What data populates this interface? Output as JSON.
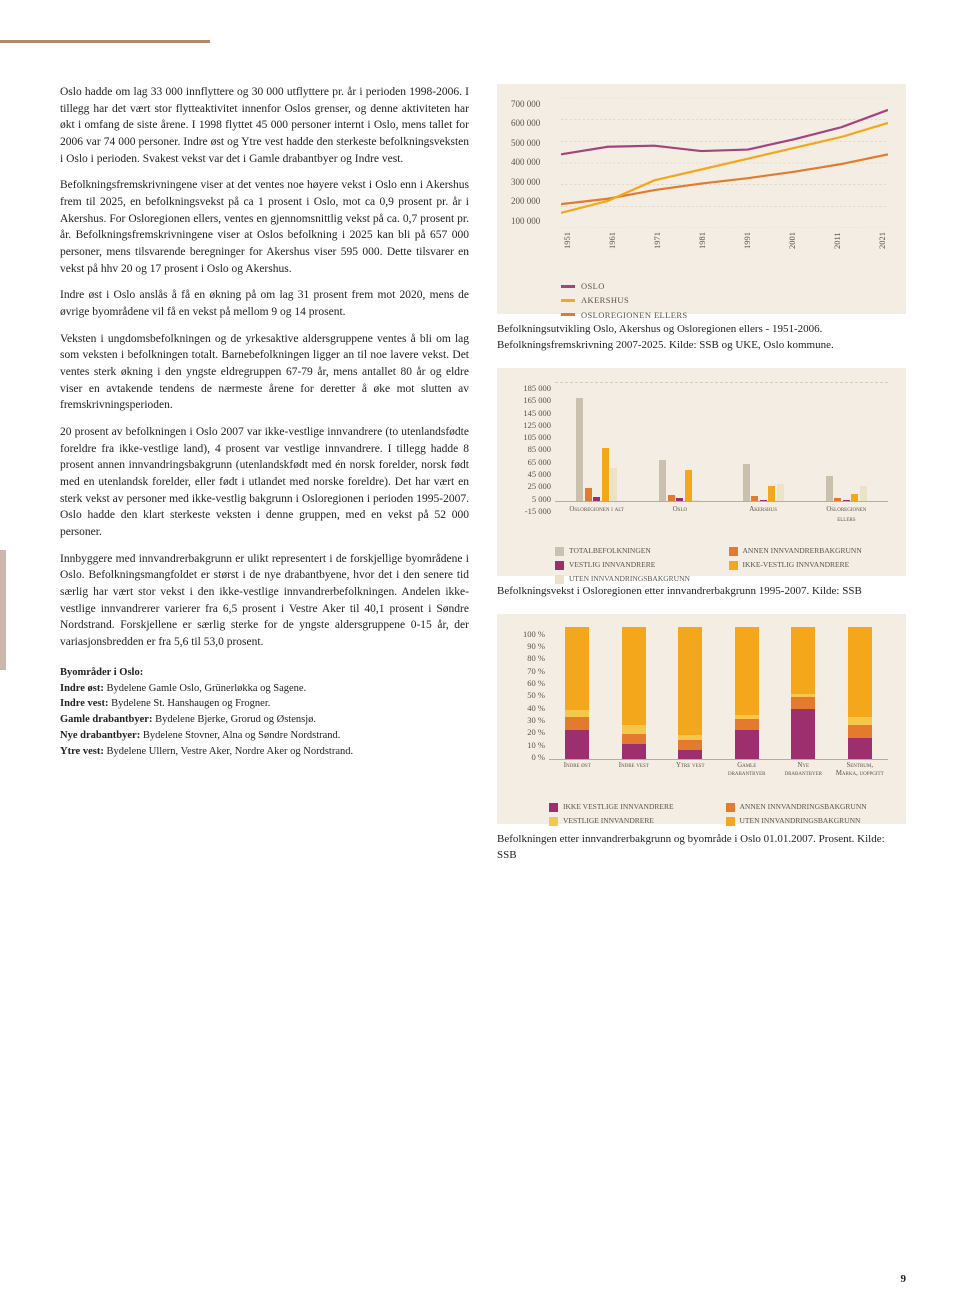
{
  "page_number": "9",
  "colors": {
    "oslo": "#a6437c",
    "akershus": "#f5a71b",
    "osloreg": "#e47a2e",
    "box_bg": "#f3ede3",
    "gridline": "#d6cdb8",
    "c_total": "#c9c1ad",
    "c_annen": "#e47a2e",
    "c_vestlig": "#9e2f6e",
    "c_ikkevestlig": "#f5a71b",
    "c_uten": "#ebe2c7"
  },
  "para": {
    "p1": "Oslo hadde om lag 33 000 innflyttere og 30 000 utflyttere pr. år i perioden 1998-2006. I tillegg har det vært stor flytteaktivitet innenfor Oslos grenser, og denne aktiviteten har økt i omfang de siste årene. I 1998 flyttet 45 000 personer internt i Oslo, mens tallet for 2006 var 74 000 personer. Indre øst og Ytre vest hadde den sterkeste befolkningsveksten i Oslo i perioden. Svakest vekst var det i Gamle drabantbyer og Indre vest.",
    "p2": "Befolkningsfremskrivningene viser at det ventes noe høyere vekst i Oslo enn i Akershus frem til 2025, en befolkningsvekst på ca 1 prosent i Oslo, mot ca 0,9 prosent pr. år i Akershus. For Osloregionen ellers, ventes en gjennomsnittlig vekst på ca. 0,7 prosent pr. år. Befolkningsfremskrivningene viser at Oslos befolkning i 2025 kan bli på 657 000 personer, mens tilsvarende beregninger for Akershus viser 595 000. Dette tilsvarer en vekst på hhv 20 og 17 prosent i Oslo og Akershus.",
    "p3": "Indre øst i Oslo anslås å få en økning på om lag 31 prosent frem mot 2020, mens de øvrige byområdene vil få en vekst på mellom 9 og 14 prosent.",
    "p4": "Veksten i ungdomsbefolkningen og de yrkesaktive aldersgruppene ventes å bli om lag som veksten i befolkningen totalt. Barnebefolkningen ligger an til noe lavere vekst. Det ventes sterk økning i den yngste eldregruppen 67-79 år, mens antallet 80 år og eldre viser en avtakende tendens de nærmeste årene for deretter å øke mot slutten av fremskrivningsperioden.",
    "p5": "20 prosent av befolkningen i Oslo 2007 var ikke-vestlige innvandrere (to utenlandsfødte foreldre fra ikke-vestlige land), 4 prosent var vestlige innvandrere. I tillegg hadde 8 prosent annen innvandringsbakgrunn (utenlandskfødt med én norsk forelder, norsk født med en utenlandsk forelder, eller født i utlandet med norske foreldre). Det har vært en sterk vekst av personer med ikke-vestlig bakgrunn i Osloregionen i perioden 1995-2007. Oslo hadde den klart sterkeste veksten i denne gruppen, med en vekst på 52 000 personer.",
    "p6": "Innbyggere med innvandrerbakgrunn er ulikt representert i de forskjellige byområdene i Oslo. Befolkningsmangfoldet er størst i de nye drabantbyene, hvor det i den senere tid særlig har vært stor vekst i den ikke-vestlige innvandrerbefolkningen. Andelen ikke-vestlige innvandrerer varierer fra 6,5 prosent i Vestre Aker til 40,1 prosent i Søndre Nordstrand. Forskjellene er særlig sterke for de yngste aldersgruppene 0-15 år, der variasjonsbredden er fra 5,6 til 53,0 prosent."
  },
  "byom": {
    "title": "Byområder i Oslo:",
    "l1": "Indre øst: Bydelene Gamle Oslo, Grünerløkka og Sagene.",
    "l2": "Indre vest: Bydelene St. Hanshaugen og Frogner.",
    "l3": "Gamle drabantbyer: Bydelene Bjerke, Grorud og Østensjø.",
    "l4": "Nye drabantbyer: Bydelene Stovner, Alna og Søndre Nordstrand.",
    "l5": "Ytre vest: Bydelene Ullern, Vestre Aker, Nordre Aker og Nordstrand."
  },
  "chart1": {
    "type": "line",
    "y_max": 700000,
    "y_min": 100000,
    "y_ticks": [
      "700 000",
      "600 000",
      "500 000",
      "400 000",
      "300 000",
      "200 000",
      "100 000"
    ],
    "x_ticks": [
      "1951",
      "1961",
      "1971",
      "1981",
      "1991",
      "2001",
      "2011",
      "2021"
    ],
    "series": {
      "oslo": {
        "color": "#a6437c",
        "values": [
          440000,
          475000,
          480000,
          455000,
          462000,
          510000,
          565000,
          645000
        ]
      },
      "akershus": {
        "color": "#f5a71b",
        "values": [
          170000,
          225000,
          320000,
          370000,
          420000,
          470000,
          520000,
          585000
        ]
      },
      "osloreg": {
        "color": "#e47a2e",
        "values": [
          210000,
          235000,
          275000,
          305000,
          330000,
          360000,
          395000,
          440000
        ]
      }
    },
    "legend": {
      "oslo": "Oslo",
      "akershus": "Akershus",
      "osloreg": "Osloregionen ellers"
    },
    "caption": "Befolkningsutvikling Oslo, Akershus og Osloregionen ellers - 1951-2006. Befolkningsfremskrivning 2007-2025. Kilde: SSB og UKE, Oslo kommune."
  },
  "chart2": {
    "type": "grouped-bar",
    "y_ticks": [
      "185 000",
      "165 000",
      "145 000",
      "125 000",
      "105 000",
      "85 000",
      "65 000",
      "45 000",
      "25 000",
      "5 000",
      "-15 000"
    ],
    "y_max": 185000,
    "y_min": -15000,
    "categories": [
      "Osloregionen i alt",
      "Oslo",
      "Akershus",
      "Osloregionen ellers"
    ],
    "series_colors": [
      "#c9c1ad",
      "#e47a2e",
      "#9e2f6e",
      "#f5a71b",
      "#ebe2c7"
    ],
    "series_labels": [
      "Totalbefolkningen",
      "Annen innvandrerbakgrunn",
      "Vestlig innvandrere",
      "Ikke-vestlig innvandrere",
      "Uten innvandringsbakgrunn"
    ],
    "data": [
      [
        172000,
        22000,
        7000,
        88000,
        55000
      ],
      [
        68000,
        10000,
        4000,
        52000,
        2000
      ],
      [
        62000,
        8000,
        2000,
        24000,
        28000
      ],
      [
        42000,
        4000,
        1000,
        12000,
        25000
      ]
    ],
    "caption": "Befolkningsvekst i Osloregionen etter innvandrerbakgrunn 1995-2007. Kilde: SSB"
  },
  "chart3": {
    "type": "stacked-bar",
    "y_ticks": [
      "100 %",
      "90 %",
      "80 %",
      "70 %",
      "60 %",
      "50 %",
      "40 %",
      "30 %",
      "20 %",
      "10 %",
      "0 %"
    ],
    "categories": [
      "Indre øst",
      "Indre vest",
      "Ytre vest",
      "Gamle drabantbyer",
      "Nye drabantbyer",
      "Sentrum, Marka, uoppgitt"
    ],
    "segment_labels": [
      "Ikke vestlige innvandrere",
      "Annen innvandringsbakgrunn",
      "Vestlige innvandrere",
      "Uten innvandringsbakgrunn"
    ],
    "segment_colors": [
      "#9e2f6e",
      "#e47a2e",
      "#f5c84b",
      "#f5a71b"
    ],
    "data": [
      [
        22,
        10,
        5,
        63
      ],
      [
        11,
        8,
        7,
        74
      ],
      [
        7,
        7,
        4,
        82
      ],
      [
        22,
        8,
        3,
        67
      ],
      [
        38,
        9,
        2,
        51
      ],
      [
        16,
        10,
        6,
        68
      ]
    ],
    "caption": "Befolkningen etter innvandrerbakgrunn og byområde i Oslo 01.01.2007. Prosent. Kilde: SSB"
  }
}
